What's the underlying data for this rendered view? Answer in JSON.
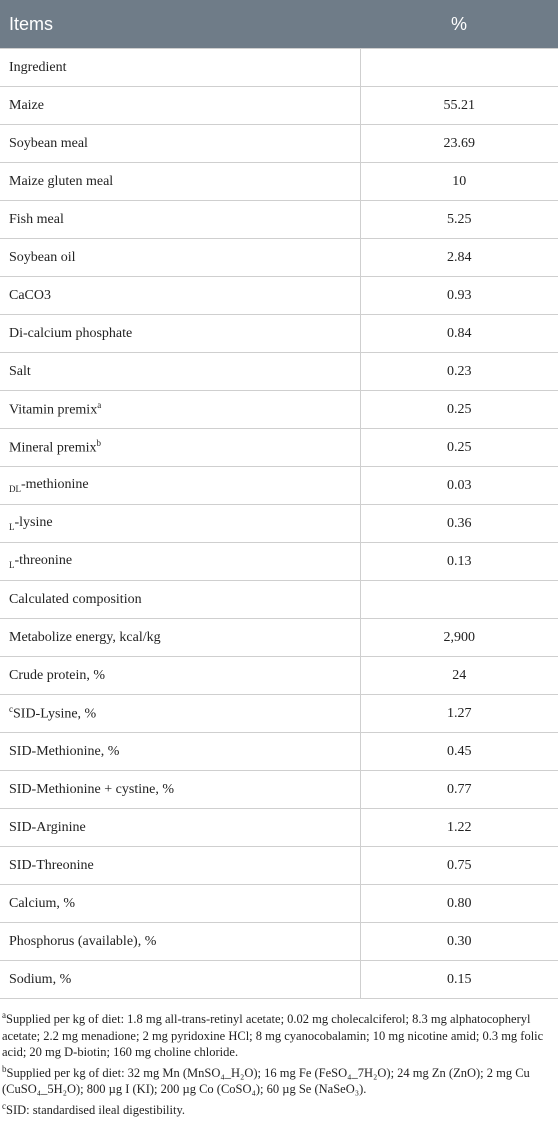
{
  "table": {
    "header": [
      "Items",
      "%"
    ],
    "rows": [
      [
        {
          "text": "Ingredient"
        }
      ],
      [
        {
          "text": "Maize"
        },
        "55.21"
      ],
      [
        {
          "text": "Soybean meal"
        },
        "23.69"
      ],
      [
        {
          "text": "Maize gluten meal"
        },
        "10"
      ],
      [
        {
          "text": "Fish meal"
        },
        "5.25"
      ],
      [
        {
          "text": "Soybean oil"
        },
        "2.84"
      ],
      [
        {
          "text": "CaCO3"
        },
        "0.93"
      ],
      [
        {
          "text": "Di-calcium phosphate"
        },
        "0.84"
      ],
      [
        {
          "text": "Salt"
        },
        "0.23"
      ],
      [
        {
          "text": "Vitamin premix",
          "sup": "a"
        },
        "0.25"
      ],
      [
        {
          "text": "Mineral premix",
          "sup": "b"
        },
        "0.25"
      ],
      [
        {
          "sub": "DL",
          "text": "-methionine"
        },
        "0.03"
      ],
      [
        {
          "sub": "L",
          "text": "-lysine"
        },
        "0.36"
      ],
      [
        {
          "sub": "L",
          "text": "-threonine"
        },
        "0.13"
      ],
      [
        {
          "text": "Calculated composition"
        }
      ],
      [
        {
          "text": "Metabolize energy, kcal/kg"
        },
        "2,900"
      ],
      [
        {
          "text": "Crude protein, %"
        },
        "24"
      ],
      [
        {
          "pre": "c",
          "text": "SID-Lysine, %"
        },
        "1.27"
      ],
      [
        {
          "text": "SID-Methionine, %"
        },
        "0.45"
      ],
      [
        {
          "text": "SID-Methionine + cystine, %"
        },
        "0.77"
      ],
      [
        {
          "text": "SID-Arginine"
        },
        "1.22"
      ],
      [
        {
          "text": "SID-Threonine"
        },
        "0.75"
      ],
      [
        {
          "text": "Calcium, %"
        },
        "0.80"
      ],
      [
        {
          "text": "Phosphorus (available), %"
        },
        "0.30"
      ],
      [
        {
          "text": "Sodium, %"
        },
        "0.15"
      ]
    ]
  },
  "footnotes": [
    {
      "mark": "a",
      "text": "Supplied per kg of diet: 1.8 mg all-trans-retinyl acetate; 0.02 mg cholecalciferol; 8.3 mg alphatocopheryl acetate; 2.2 mg menadione; 2 mg pyridoxine HCl; 8 mg cyanocobalamin; 10 mg nicotine amid; 0.3 mg folic acid; 20 mg D-biotin; 160 mg choline chloride."
    },
    {
      "mark": "b",
      "text": "Supplied per kg of diet: 32 mg Mn (MnSO₄_H₂O); 16 mg Fe (FeSO₄_7H₂O); 24 mg Zn (ZnO); 2 mg Cu (CuSO₄_5H₂O); 800 µg I (KI); 200 µg Co (CoSO₄); 60 µg Se (NaSeO₃)."
    },
    {
      "mark": "c",
      "text": "SID: standardised ileal digestibility."
    }
  ]
}
